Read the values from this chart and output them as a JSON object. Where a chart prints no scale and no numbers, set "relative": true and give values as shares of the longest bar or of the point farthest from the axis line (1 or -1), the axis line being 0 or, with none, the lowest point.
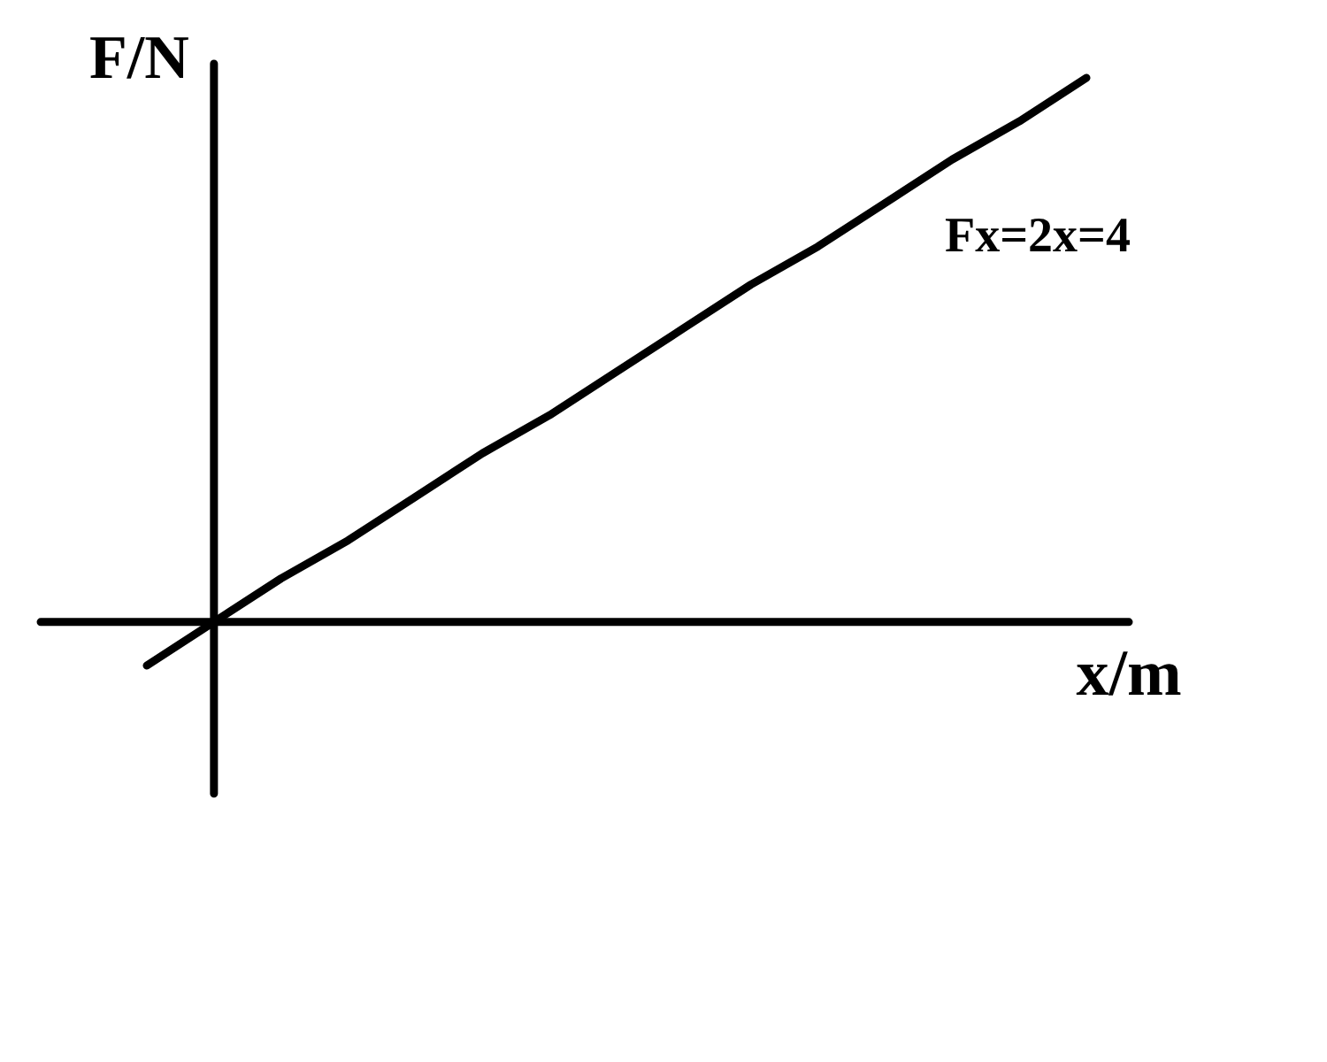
{
  "chart_data": {
    "type": "line",
    "xlabel": "x/m",
    "ylabel": "F/N",
    "annotations": [
      "Fx=2x=4"
    ],
    "categories": [
      null,
      null,
      null,
      null,
      null,
      null,
      null,
      null,
      null,
      null,
      null,
      null,
      null,
      null,
      null
    ],
    "relative": true,
    "marker": "none",
    "series": [
      {
        "color": "#000000",
        "values": [
          -0.08,
          0,
          0.08,
          0.15,
          0.23,
          0.31,
          0.38,
          0.46,
          0.54,
          0.62,
          0.69,
          0.77,
          0.85,
          0.92,
          1
        ]
      }
    ]
  }
}
